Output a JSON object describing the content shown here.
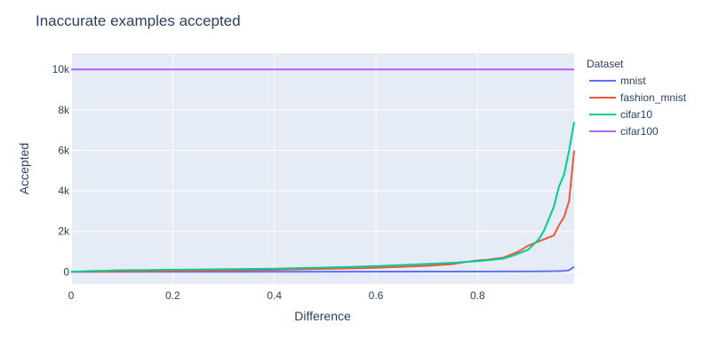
{
  "chart_data": {
    "type": "line",
    "title": "Inaccurate examples accepted",
    "xlabel": "Difference",
    "ylabel": "Accepted",
    "legend_title": "Dataset",
    "legend_position": "right",
    "xlim": [
      0,
      0.99
    ],
    "ylim": [
      -600,
      10800
    ],
    "xticks": [
      0,
      0.2,
      0.4,
      0.6,
      0.8
    ],
    "xtick_labels": [
      "0",
      "0.2",
      "0.4",
      "0.6",
      "0.8"
    ],
    "yticks": [
      0,
      2000,
      4000,
      6000,
      8000,
      10000
    ],
    "ytick_labels": [
      "0",
      "2k",
      "4k",
      "6k",
      "8k",
      "10k"
    ],
    "grid": true,
    "series": [
      {
        "name": "mnist",
        "color": "#636efa",
        "x": [
          0,
          0.1,
          0.3,
          0.5,
          0.7,
          0.9,
          0.95,
          0.97,
          0.98,
          0.99
        ],
        "y": [
          0,
          2,
          5,
          10,
          15,
          20,
          30,
          45,
          80,
          250
        ]
      },
      {
        "name": "fashion_mnist",
        "color": "#EF553B",
        "x": [
          0,
          0.1,
          0.2,
          0.3,
          0.4,
          0.5,
          0.6,
          0.7,
          0.75,
          0.78,
          0.8,
          0.82,
          0.85,
          0.87,
          0.88,
          0.9,
          0.92,
          0.95,
          0.96,
          0.97,
          0.98,
          0.99
        ],
        "y": [
          0,
          20,
          40,
          60,
          100,
          150,
          200,
          300,
          380,
          500,
          560,
          600,
          700,
          900,
          1000,
          1300,
          1500,
          1800,
          2300,
          2700,
          3500,
          6000
        ]
      },
      {
        "name": "cifar10",
        "color": "#00cc96",
        "x": [
          0,
          0.05,
          0.1,
          0.2,
          0.3,
          0.4,
          0.5,
          0.6,
          0.7,
          0.75,
          0.8,
          0.85,
          0.87,
          0.9,
          0.92,
          0.93,
          0.94,
          0.95,
          0.96,
          0.97,
          0.98,
          0.99
        ],
        "y": [
          0,
          50,
          80,
          100,
          130,
          160,
          210,
          280,
          390,
          450,
          530,
          650,
          800,
          1100,
          1600,
          2000,
          2600,
          3200,
          4200,
          4800,
          6000,
          7400
        ]
      },
      {
        "name": "cifar100",
        "color": "#ab63fa",
        "x": [
          0,
          0.2,
          0.4,
          0.6,
          0.8,
          0.99
        ],
        "y": [
          10000,
          10000,
          10000,
          10000,
          10000,
          10000
        ]
      }
    ]
  }
}
